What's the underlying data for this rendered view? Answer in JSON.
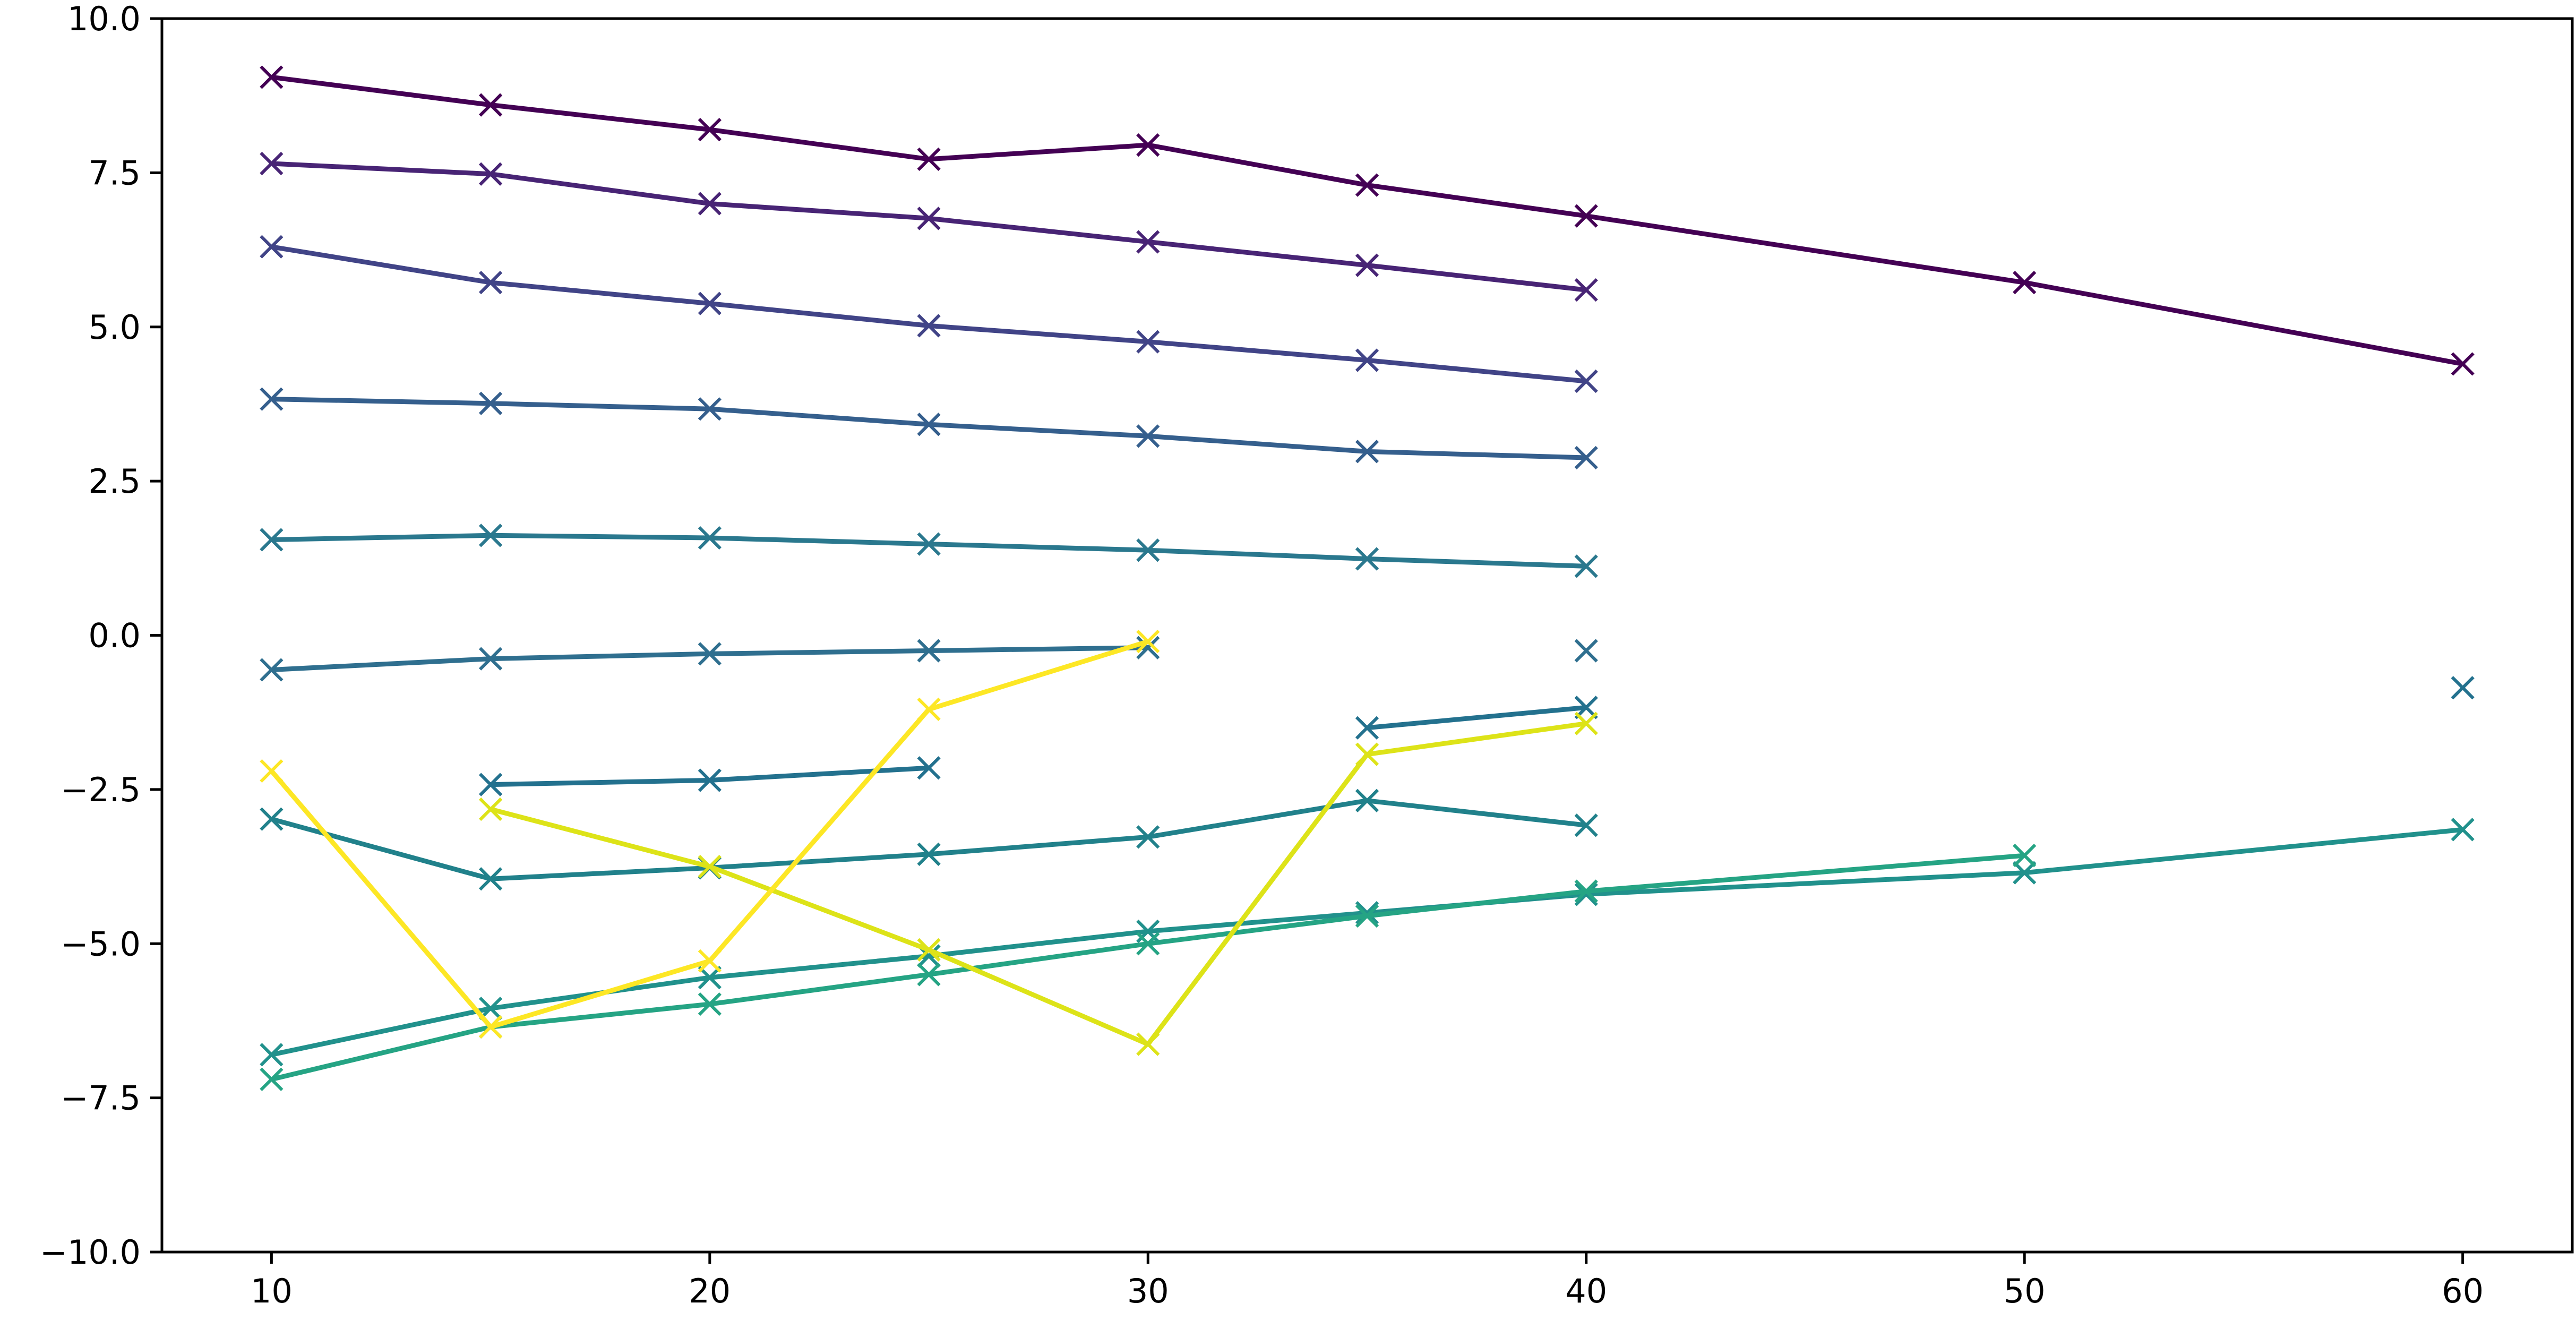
{
  "chart_data": {
    "type": "line",
    "title": "",
    "xlabel": "",
    "ylabel": "",
    "xlim": [
      7.5,
      62.5
    ],
    "ylim": [
      -10,
      10
    ],
    "grid": false,
    "legend": "none",
    "marker": "x",
    "x_ticks": [
      10,
      20,
      30,
      40,
      50,
      60
    ],
    "x_tick_labels": [
      "10",
      "20",
      "30",
      "40",
      "50",
      "60"
    ],
    "y_ticks": [
      -10,
      -7.5,
      -5,
      -2.5,
      0,
      2.5,
      5,
      7.5,
      10
    ],
    "y_tick_labels": [
      "−10.0",
      "−7.5",
      "−5.0",
      "−2.5",
      "0.0",
      "2.5",
      "5.0",
      "7.5",
      "10.0"
    ],
    "series": [
      {
        "color": "#440154",
        "x": [
          10,
          15,
          20,
          25,
          30,
          35,
          40,
          50,
          60
        ],
        "y": [
          9.05,
          8.6,
          8.2,
          7.72,
          7.95,
          7.3,
          6.8,
          5.72,
          4.4
        ]
      },
      {
        "color": "#482475",
        "x": [
          10,
          15,
          20,
          25,
          30,
          35,
          40
        ],
        "y": [
          7.65,
          7.48,
          7.0,
          6.76,
          6.38,
          6.0,
          5.6
        ]
      },
      {
        "color": "#414487",
        "x": [
          10,
          15,
          20,
          25,
          30,
          35,
          40
        ],
        "y": [
          6.3,
          5.72,
          5.38,
          5.02,
          4.76,
          4.46,
          4.12
        ]
      },
      {
        "color": "#355f8d",
        "x": [
          10,
          15,
          20,
          25,
          30,
          35,
          40
        ],
        "y": [
          3.83,
          3.76,
          3.67,
          3.42,
          3.23,
          2.98,
          2.88
        ]
      },
      {
        "color": "#2a788e",
        "x": [
          10,
          15,
          20,
          25,
          30,
          35,
          40
        ],
        "y": [
          1.55,
          1.62,
          1.58,
          1.48,
          1.38,
          1.24,
          1.12
        ]
      },
      {
        "color": "#2f6f8f",
        "x": [
          10,
          15,
          20,
          25,
          30,
          40
        ],
        "y": [
          -0.56,
          -0.38,
          -0.3,
          -0.25,
          -0.2,
          -0.25
        ],
        "segments": [
          [
            0,
            4
          ],
          [
            5,
            5
          ]
        ]
      },
      {
        "color": "#23718e",
        "x": [
          15,
          20,
          25,
          35,
          40,
          60
        ],
        "y": [
          -2.42,
          -2.35,
          -2.15,
          -1.5,
          -1.17,
          -0.85
        ],
        "segments": [
          [
            0,
            2
          ],
          [
            3,
            4
          ],
          [
            5,
            5
          ]
        ]
      },
      {
        "color": "#21818b",
        "x": [
          10,
          15,
          20,
          25,
          30,
          35,
          40
        ],
        "y": [
          -2.98,
          -3.95,
          -3.77,
          -3.55,
          -3.27,
          -2.68,
          -3.08
        ]
      },
      {
        "color": "#21918c",
        "x": [
          10,
          15,
          20,
          25,
          30,
          35,
          40,
          50,
          60
        ],
        "y": [
          -6.8,
          -6.05,
          -5.55,
          -5.2,
          -4.8,
          -4.5,
          -4.2,
          -3.85,
          -3.15
        ]
      },
      {
        "color": "#25a484",
        "x": [
          10,
          15,
          20,
          25,
          30,
          35,
          40,
          50
        ],
        "y": [
          -7.2,
          -6.35,
          -5.98,
          -5.5,
          -5.0,
          -4.55,
          -4.15,
          -3.57
        ]
      },
      {
        "color": "#dde318",
        "x": [
          15,
          20,
          25,
          30,
          35,
          40
        ],
        "y": [
          -2.82,
          -3.75,
          -5.1,
          -6.63,
          -1.93,
          -1.43
        ]
      },
      {
        "color": "#fde725",
        "x": [
          10,
          15,
          20,
          25,
          30
        ],
        "y": [
          -2.2,
          -6.35,
          -5.28,
          -1.2,
          -0.1
        ]
      }
    ]
  }
}
